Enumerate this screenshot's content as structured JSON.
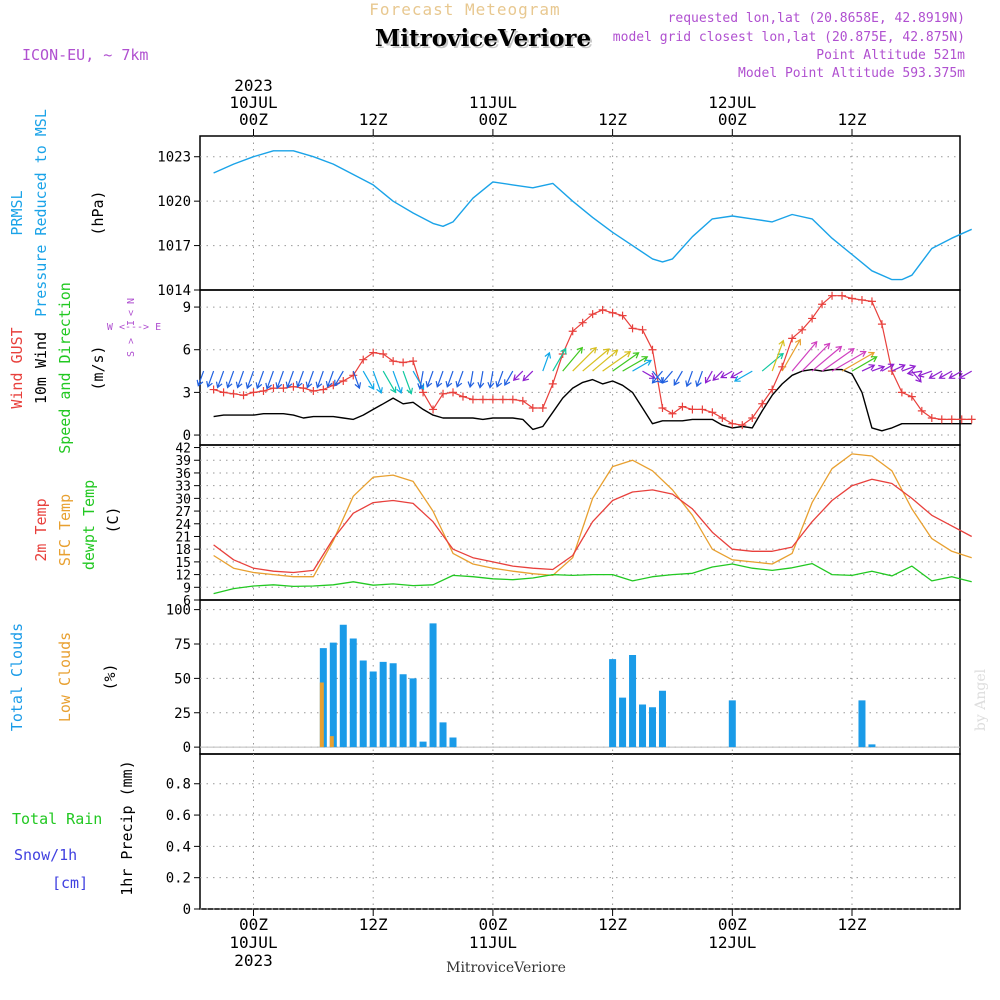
{
  "header": {
    "product": "Forecast Meteogram",
    "station": "MitroviceVeriore",
    "model": "ICON-EU, ~ 7km",
    "requested": "requested lon,lat (20.8658E, 42.8919N)",
    "closest": "model grid closest lon,lat (20.875E, 42.875N)",
    "point_alt": "Point Altitude 521m",
    "model_alt": "Model Point Altitude 593.375m"
  },
  "time_axis": {
    "top": [
      {
        "lines": [
          "2023",
          "10JUL",
          "00Z"
        ],
        "h": 0
      },
      {
        "lines": [
          "12Z"
        ],
        "h": 12
      },
      {
        "lines": [
          "11JUL",
          "00Z"
        ],
        "h": 24
      },
      {
        "lines": [
          "12Z"
        ],
        "h": 36
      },
      {
        "lines": [
          "12JUL",
          "00Z"
        ],
        "h": 48
      },
      {
        "lines": [
          "12Z"
        ],
        "h": 60
      }
    ],
    "bottom": [
      {
        "lines": [
          "00Z",
          "10JUL",
          "2023"
        ],
        "h": 0
      },
      {
        "lines": [
          "12Z"
        ],
        "h": 12
      },
      {
        "lines": [
          "00Z",
          "11JUL"
        ],
        "h": 24
      },
      {
        "lines": [
          "12Z"
        ],
        "h": 36
      },
      {
        "lines": [
          "00Z",
          "12JUL"
        ],
        "h": 48
      },
      {
        "lines": [
          "12Z"
        ],
        "h": 60
      }
    ],
    "footer": "MitroviceVeriore"
  },
  "labels": {
    "pressure": [
      "PRMSL",
      "Pressure Reduced to MSL"
    ],
    "pressure_unit": "(hPa)",
    "wind": [
      "Wind GUST",
      "10m Wind",
      "Speed and Direction"
    ],
    "wind_unit": "(m/s)",
    "compass": {
      "n": "N",
      "s": "S",
      "w": "W",
      "e": "E"
    },
    "temp": [
      "2m Temp",
      "SFC Temp",
      "dewpt Temp"
    ],
    "temp_unit": "(C)",
    "cloud": [
      "Total Clouds",
      "Low Clouds"
    ],
    "cloud_unit": "(%)",
    "precip": [
      "Total  Rain",
      "Snow/1h",
      "[cm]"
    ],
    "precip_unit": "1hr Precip (mm)",
    "credit": "by Angel"
  },
  "colors": {
    "pressure": "#1aa3e8",
    "gust": "#e8403c",
    "wind": "#000000",
    "t2m": "#e8403c",
    "sfc": "#e8a030",
    "dewpt": "#22c822",
    "total_clouds": "#1a9be8",
    "low_clouds": "#e8a030",
    "rain": "#22c822",
    "snow": "#4040e0",
    "title": "#e8c890",
    "meta": "#b050d0"
  },
  "chart_data": [
    {
      "type": "line",
      "title": "PRMSL Pressure Reduced to MSL",
      "ylabel": "(hPa)",
      "ylim": [
        1014,
        1024
      ],
      "yticks": [
        1014,
        1017,
        1020,
        1023
      ],
      "x_hours": [
        -4,
        -2,
        0,
        2,
        4,
        6,
        8,
        10,
        12,
        14,
        16,
        18,
        19,
        20,
        22,
        24,
        26,
        28,
        30,
        32,
        34,
        36,
        38,
        40,
        41,
        42,
        44,
        46,
        48,
        50,
        52,
        54,
        56,
        58,
        60,
        62,
        64,
        65,
        66,
        68,
        70,
        72
      ],
      "series": [
        {
          "name": "PRMSL",
          "values": [
            1021.9,
            1022.5,
            1023.0,
            1023.4,
            1023.4,
            1023.0,
            1022.5,
            1021.8,
            1021.1,
            1020.0,
            1019.2,
            1018.5,
            1018.3,
            1018.6,
            1020.2,
            1021.3,
            1021.1,
            1020.9,
            1021.2,
            1020.0,
            1018.9,
            1017.9,
            1017.0,
            1016.1,
            1015.9,
            1016.1,
            1017.6,
            1018.8,
            1019.0,
            1018.8,
            1018.6,
            1019.1,
            1018.8,
            1017.5,
            1016.4,
            1015.3,
            1014.7,
            1014.7,
            1015.0,
            1016.8,
            1017.5,
            1018.1
          ]
        }
      ]
    },
    {
      "type": "line",
      "title": "Wind GUST / 10m Wind Speed and Direction",
      "ylabel": "(m/s)",
      "ylim": [
        -0.5,
        10.5
      ],
      "yticks": [
        0,
        3,
        6,
        9
      ],
      "x_hours": [
        -4,
        -3,
        -2,
        -1,
        0,
        1,
        2,
        3,
        4,
        5,
        6,
        7,
        8,
        9,
        10,
        11,
        12,
        13,
        14,
        15,
        16,
        17,
        18,
        19,
        20,
        21,
        22,
        23,
        24,
        25,
        26,
        27,
        28,
        29,
        30,
        31,
        32,
        33,
        34,
        35,
        36,
        37,
        38,
        39,
        40,
        41,
        42,
        43,
        44,
        45,
        46,
        47,
        48,
        49,
        50,
        51,
        52,
        53,
        54,
        55,
        56,
        57,
        58,
        59,
        60,
        61,
        62,
        63,
        64,
        65,
        66,
        67,
        68,
        69,
        70,
        71,
        72
      ],
      "series": [
        {
          "name": "Wind GUST",
          "values": [
            3.2,
            3.0,
            2.9,
            2.8,
            3.0,
            3.1,
            3.3,
            3.3,
            3.4,
            3.3,
            3.1,
            3.2,
            3.5,
            3.8,
            4.2,
            5.3,
            5.8,
            5.7,
            5.2,
            5.1,
            5.2,
            3.0,
            1.8,
            2.9,
            3.0,
            2.7,
            2.5,
            2.5,
            2.5,
            2.5,
            2.5,
            2.4,
            1.9,
            1.9,
            3.6,
            5.7,
            7.3,
            7.9,
            8.5,
            8.8,
            8.6,
            8.4,
            7.5,
            7.4,
            6.0,
            1.9,
            1.5,
            2.0,
            1.8,
            1.8,
            1.6,
            1.2,
            0.8,
            0.7,
            1.2,
            2.2,
            3.2,
            4.8,
            6.8,
            7.4,
            8.2,
            9.2,
            9.8,
            9.8,
            9.6,
            9.5,
            9.4,
            7.8,
            4.5,
            3.0,
            2.7,
            1.7,
            1.2,
            1.1,
            1.1,
            1.1,
            1.1
          ]
        },
        {
          "name": "10m Wind",
          "values": [
            1.3,
            1.4,
            1.4,
            1.4,
            1.4,
            1.5,
            1.5,
            1.5,
            1.4,
            1.2,
            1.3,
            1.3,
            1.3,
            1.2,
            1.1,
            1.4,
            1.8,
            2.2,
            2.6,
            2.2,
            2.3,
            1.8,
            1.4,
            1.2,
            1.2,
            1.2,
            1.2,
            1.1,
            1.2,
            1.2,
            1.2,
            1.1,
            0.4,
            0.6,
            1.6,
            2.6,
            3.3,
            3.7,
            3.9,
            3.6,
            3.8,
            3.5,
            3.0,
            1.9,
            0.8,
            1.0,
            1.0,
            1.0,
            1.1,
            1.1,
            1.1,
            0.7,
            0.5,
            0.6,
            0.5,
            1.7,
            2.8,
            3.6,
            4.2,
            4.5,
            4.6,
            4.5,
            4.6,
            4.6,
            4.3,
            3.0,
            0.5,
            0.3,
            0.5,
            0.8,
            0.8,
            0.8,
            0.8,
            0.8,
            0.8,
            0.8,
            0.8
          ]
        }
      ],
      "wind_arrows": {
        "x_hours": [
          -5,
          -4,
          -3,
          -2,
          -1,
          0,
          1,
          2,
          3,
          4,
          5,
          6,
          7,
          8,
          9,
          10,
          11,
          12,
          13,
          14,
          15,
          16,
          17,
          18,
          19,
          20,
          21,
          22,
          23,
          24,
          25,
          26,
          27,
          28,
          29,
          30,
          31,
          32,
          33,
          34,
          35,
          36,
          37,
          38,
          39,
          40,
          41,
          42,
          43,
          44,
          45,
          46,
          47,
          48,
          49,
          50,
          51,
          52,
          53,
          54,
          55,
          56,
          57,
          58,
          59,
          60,
          61,
          62,
          63,
          64,
          65,
          66,
          67,
          68,
          69,
          70,
          71,
          72
        ],
        "speed": [
          1.0,
          1.2,
          1.3,
          1.3,
          1.3,
          1.4,
          1.4,
          1.5,
          1.4,
          1.3,
          1.2,
          1.3,
          1.3,
          1.2,
          1.2,
          1.4,
          1.8,
          2.2,
          2.4,
          2.2,
          2.3,
          1.8,
          1.4,
          1.2,
          1.2,
          1.2,
          1.2,
          1.1,
          1.2,
          1.2,
          1.2,
          1.1,
          0.6,
          0.7,
          1.6,
          2.6,
          3.3,
          3.7,
          3.9,
          3.6,
          3.8,
          3.5,
          3.0,
          1.9,
          0.8,
          1.0,
          1.0,
          1.0,
          1.1,
          1.1,
          1.1,
          0.7,
          0.6,
          0.6,
          0.6,
          1.7,
          2.8,
          3.6,
          4.2,
          4.5,
          4.6,
          4.5,
          4.6,
          4.6,
          4.3,
          3.0,
          0.7,
          0.6,
          0.7,
          0.8,
          0.8,
          0.8,
          0.8,
          0.8,
          0.8,
          0.8,
          0.8,
          0.8
        ],
        "dir_deg": [
          20,
          20,
          20,
          20,
          20,
          20,
          20,
          20,
          20,
          20,
          20,
          20,
          20,
          20,
          30,
          340,
          330,
          340,
          330,
          340,
          340,
          330,
          10,
          20,
          20,
          20,
          20,
          10,
          10,
          10,
          20,
          30,
          45,
          45,
          200,
          210,
          220,
          225,
          230,
          230,
          235,
          235,
          240,
          240,
          300,
          320,
          40,
          40,
          30,
          20,
          20,
          30,
          45,
          60,
          60,
          60,
          230,
          200,
          210,
          220,
          225,
          230,
          235,
          240,
          240,
          240,
          245,
          250,
          240,
          245,
          250,
          320,
          80,
          70,
          60,
          60,
          60,
          60
        ]
      }
    },
    {
      "type": "line",
      "title": "2m Temp / SFC Temp / dewpt Temp",
      "ylabel": "(C)",
      "ylim": [
        6,
        42
      ],
      "yticks": [
        6,
        9,
        12,
        15,
        18,
        21,
        24,
        27,
        30,
        33,
        36,
        39,
        42
      ],
      "x_hours": [
        -4,
        -2,
        0,
        2,
        4,
        6,
        8,
        10,
        12,
        14,
        16,
        18,
        20,
        22,
        24,
        26,
        28,
        30,
        32,
        34,
        36,
        38,
        40,
        42,
        44,
        46,
        48,
        50,
        52,
        54,
        56,
        58,
        60,
        62,
        64,
        66,
        68,
        70,
        72
      ],
      "series": [
        {
          "name": "2m Temp",
          "values": [
            19.0,
            15.5,
            13.5,
            12.8,
            12.5,
            13.0,
            20.5,
            26.5,
            29.0,
            29.5,
            28.8,
            24.5,
            18.0,
            16.0,
            15.0,
            14.0,
            13.5,
            13.2,
            16.5,
            24.5,
            29.5,
            31.5,
            32.0,
            31.0,
            27.5,
            22.0,
            18.0,
            17.5,
            17.5,
            18.5,
            24.5,
            29.5,
            33.0,
            34.5,
            33.5,
            30.0,
            26.0,
            23.5,
            21.0
          ]
        },
        {
          "name": "SFC Temp",
          "values": [
            16.5,
            13.5,
            12.5,
            12.0,
            11.5,
            11.5,
            20.0,
            30.5,
            35.0,
            35.5,
            34.0,
            27.0,
            17.0,
            14.5,
            13.5,
            12.8,
            12.2,
            11.8,
            16.0,
            30.0,
            37.5,
            39.0,
            36.5,
            32.0,
            26.0,
            18.0,
            15.5,
            15.0,
            14.5,
            17.0,
            29.0,
            37.0,
            40.5,
            40.0,
            36.5,
            27.5,
            20.5,
            17.5,
            16.0
          ]
        },
        {
          "name": "dewpt Temp",
          "values": [
            7.5,
            8.7,
            9.3,
            9.6,
            9.2,
            9.3,
            9.6,
            10.3,
            9.5,
            9.8,
            9.4,
            9.6,
            11.8,
            11.5,
            11.0,
            10.8,
            11.2,
            12.0,
            11.8,
            12.0,
            12.0,
            10.5,
            11.5,
            12.0,
            12.3,
            13.8,
            14.5,
            13.5,
            13.0,
            13.6,
            14.6,
            12.0,
            11.8,
            12.8,
            11.7,
            14.0,
            10.5,
            11.5,
            10.3
          ]
        }
      ]
    },
    {
      "type": "bar",
      "title": "Total Clouds / Low Clouds",
      "ylabel": "(%)",
      "ylim": [
        0,
        105
      ],
      "yticks": [
        0,
        25,
        50,
        75,
        100
      ],
      "x_hours": [
        7,
        8,
        9,
        10,
        11,
        12,
        13,
        14,
        15,
        16,
        17,
        18,
        19,
        20,
        21,
        36,
        37,
        38,
        39,
        40,
        41,
        48,
        61,
        62
      ],
      "series": [
        {
          "name": "Total Clouds",
          "values": [
            72,
            76,
            89,
            79,
            63,
            55,
            62,
            61,
            53,
            50,
            4,
            90,
            18,
            7,
            0,
            64,
            36,
            67,
            31,
            29,
            41,
            34,
            34,
            2
          ]
        },
        {
          "name": "Low Clouds",
          "values": [
            47,
            8,
            0,
            0,
            0,
            0,
            0,
            0,
            0,
            0,
            0,
            0,
            0,
            0,
            0,
            0,
            0,
            0,
            0,
            0,
            0,
            0,
            0,
            0
          ]
        }
      ]
    },
    {
      "type": "bar",
      "title": "1hr Precip",
      "ylabel": "1hr Precip (mm)",
      "ylim": [
        0,
        1
      ],
      "yticks": [
        0,
        0.2,
        0.4,
        0.6,
        0.8
      ],
      "x_hours": [],
      "series": [
        {
          "name": "Total  Rain",
          "values": []
        },
        {
          "name": "Snow/1h",
          "values": []
        }
      ]
    }
  ]
}
